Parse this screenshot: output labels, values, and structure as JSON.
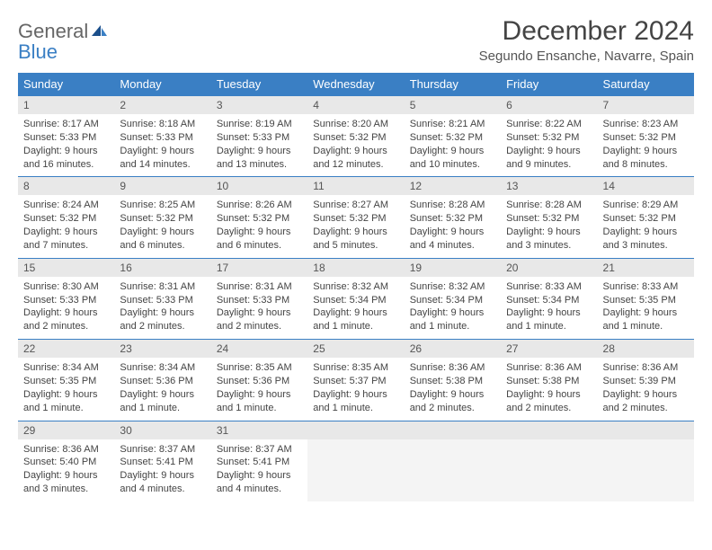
{
  "brand": {
    "name1": "General",
    "name2": "Blue"
  },
  "title": "December 2024",
  "location": "Segundo Ensanche, Navarre, Spain",
  "colors": {
    "header_bg": "#3a7fc4",
    "header_text": "#ffffff",
    "daynum_bg": "#e8e8e8",
    "row_border": "#3a7fc4",
    "text": "#444444",
    "brand_gray": "#666666",
    "brand_blue": "#3a7fc4"
  },
  "weekdays": [
    "Sunday",
    "Monday",
    "Tuesday",
    "Wednesday",
    "Thursday",
    "Friday",
    "Saturday"
  ],
  "weeks": [
    [
      {
        "n": "1",
        "sunrise": "8:17 AM",
        "sunset": "5:33 PM",
        "daylight": "9 hours and 16 minutes."
      },
      {
        "n": "2",
        "sunrise": "8:18 AM",
        "sunset": "5:33 PM",
        "daylight": "9 hours and 14 minutes."
      },
      {
        "n": "3",
        "sunrise": "8:19 AM",
        "sunset": "5:33 PM",
        "daylight": "9 hours and 13 minutes."
      },
      {
        "n": "4",
        "sunrise": "8:20 AM",
        "sunset": "5:32 PM",
        "daylight": "9 hours and 12 minutes."
      },
      {
        "n": "5",
        "sunrise": "8:21 AM",
        "sunset": "5:32 PM",
        "daylight": "9 hours and 10 minutes."
      },
      {
        "n": "6",
        "sunrise": "8:22 AM",
        "sunset": "5:32 PM",
        "daylight": "9 hours and 9 minutes."
      },
      {
        "n": "7",
        "sunrise": "8:23 AM",
        "sunset": "5:32 PM",
        "daylight": "9 hours and 8 minutes."
      }
    ],
    [
      {
        "n": "8",
        "sunrise": "8:24 AM",
        "sunset": "5:32 PM",
        "daylight": "9 hours and 7 minutes."
      },
      {
        "n": "9",
        "sunrise": "8:25 AM",
        "sunset": "5:32 PM",
        "daylight": "9 hours and 6 minutes."
      },
      {
        "n": "10",
        "sunrise": "8:26 AM",
        "sunset": "5:32 PM",
        "daylight": "9 hours and 6 minutes."
      },
      {
        "n": "11",
        "sunrise": "8:27 AM",
        "sunset": "5:32 PM",
        "daylight": "9 hours and 5 minutes."
      },
      {
        "n": "12",
        "sunrise": "8:28 AM",
        "sunset": "5:32 PM",
        "daylight": "9 hours and 4 minutes."
      },
      {
        "n": "13",
        "sunrise": "8:28 AM",
        "sunset": "5:32 PM",
        "daylight": "9 hours and 3 minutes."
      },
      {
        "n": "14",
        "sunrise": "8:29 AM",
        "sunset": "5:32 PM",
        "daylight": "9 hours and 3 minutes."
      }
    ],
    [
      {
        "n": "15",
        "sunrise": "8:30 AM",
        "sunset": "5:33 PM",
        "daylight": "9 hours and 2 minutes."
      },
      {
        "n": "16",
        "sunrise": "8:31 AM",
        "sunset": "5:33 PM",
        "daylight": "9 hours and 2 minutes."
      },
      {
        "n": "17",
        "sunrise": "8:31 AM",
        "sunset": "5:33 PM",
        "daylight": "9 hours and 2 minutes."
      },
      {
        "n": "18",
        "sunrise": "8:32 AM",
        "sunset": "5:34 PM",
        "daylight": "9 hours and 1 minute."
      },
      {
        "n": "19",
        "sunrise": "8:32 AM",
        "sunset": "5:34 PM",
        "daylight": "9 hours and 1 minute."
      },
      {
        "n": "20",
        "sunrise": "8:33 AM",
        "sunset": "5:34 PM",
        "daylight": "9 hours and 1 minute."
      },
      {
        "n": "21",
        "sunrise": "8:33 AM",
        "sunset": "5:35 PM",
        "daylight": "9 hours and 1 minute."
      }
    ],
    [
      {
        "n": "22",
        "sunrise": "8:34 AM",
        "sunset": "5:35 PM",
        "daylight": "9 hours and 1 minute."
      },
      {
        "n": "23",
        "sunrise": "8:34 AM",
        "sunset": "5:36 PM",
        "daylight": "9 hours and 1 minute."
      },
      {
        "n": "24",
        "sunrise": "8:35 AM",
        "sunset": "5:36 PM",
        "daylight": "9 hours and 1 minute."
      },
      {
        "n": "25",
        "sunrise": "8:35 AM",
        "sunset": "5:37 PM",
        "daylight": "9 hours and 1 minute."
      },
      {
        "n": "26",
        "sunrise": "8:36 AM",
        "sunset": "5:38 PM",
        "daylight": "9 hours and 2 minutes."
      },
      {
        "n": "27",
        "sunrise": "8:36 AM",
        "sunset": "5:38 PM",
        "daylight": "9 hours and 2 minutes."
      },
      {
        "n": "28",
        "sunrise": "8:36 AM",
        "sunset": "5:39 PM",
        "daylight": "9 hours and 2 minutes."
      }
    ],
    [
      {
        "n": "29",
        "sunrise": "8:36 AM",
        "sunset": "5:40 PM",
        "daylight": "9 hours and 3 minutes."
      },
      {
        "n": "30",
        "sunrise": "8:37 AM",
        "sunset": "5:41 PM",
        "daylight": "9 hours and 4 minutes."
      },
      {
        "n": "31",
        "sunrise": "8:37 AM",
        "sunset": "5:41 PM",
        "daylight": "9 hours and 4 minutes."
      },
      null,
      null,
      null,
      null
    ]
  ],
  "labels": {
    "sunrise": "Sunrise:",
    "sunset": "Sunset:",
    "daylight": "Daylight:"
  }
}
